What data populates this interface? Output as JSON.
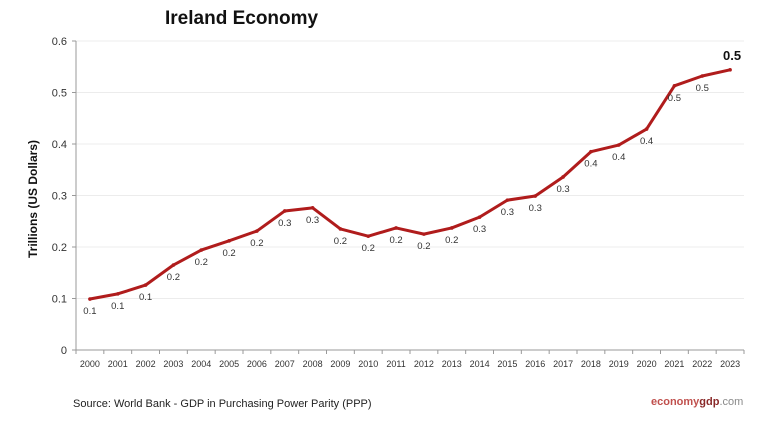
{
  "chart_data": {
    "type": "line",
    "title": "Ireland Economy",
    "xlabel": "",
    "ylabel": "Trillions (US Dollars)",
    "ylim": [
      0,
      0.6
    ],
    "yticks": [
      "0",
      "0.1",
      "0.2",
      "0.3",
      "0.4",
      "0.5",
      "0.6"
    ],
    "grid": true,
    "categories": [
      "2000",
      "2001",
      "2002",
      "2003",
      "2004",
      "2005",
      "2006",
      "2007",
      "2008",
      "2009",
      "2010",
      "2011",
      "2012",
      "2013",
      "2014",
      "2015",
      "2016",
      "2017",
      "2018",
      "2019",
      "2020",
      "2021",
      "2022",
      "2023"
    ],
    "values": [
      0.099,
      0.109,
      0.126,
      0.165,
      0.194,
      0.212,
      0.231,
      0.27,
      0.276,
      0.235,
      0.221,
      0.237,
      0.225,
      0.237,
      0.258,
      0.291,
      0.299,
      0.336,
      0.385,
      0.398,
      0.429,
      0.513,
      0.532,
      0.544
    ],
    "data_labels": [
      "0.1",
      "0.1",
      "0.1",
      "0.2",
      "0.2",
      "0.2",
      "0.2",
      "0.3",
      "0.3",
      "0.2",
      "0.2",
      "0.2",
      "0.2",
      "0.2",
      "0.3",
      "0.3",
      "0.3",
      "0.3",
      "0.4",
      "0.4",
      "0.4",
      "0.5",
      "0.5",
      "0.5"
    ],
    "line_color": "#b01c1c"
  },
  "source": "Source:  World Bank -  GDP  in Purchasing Power Parity (PPP)",
  "logo": {
    "part1": "economy",
    "part2": "gdp",
    "part3": ".com"
  }
}
